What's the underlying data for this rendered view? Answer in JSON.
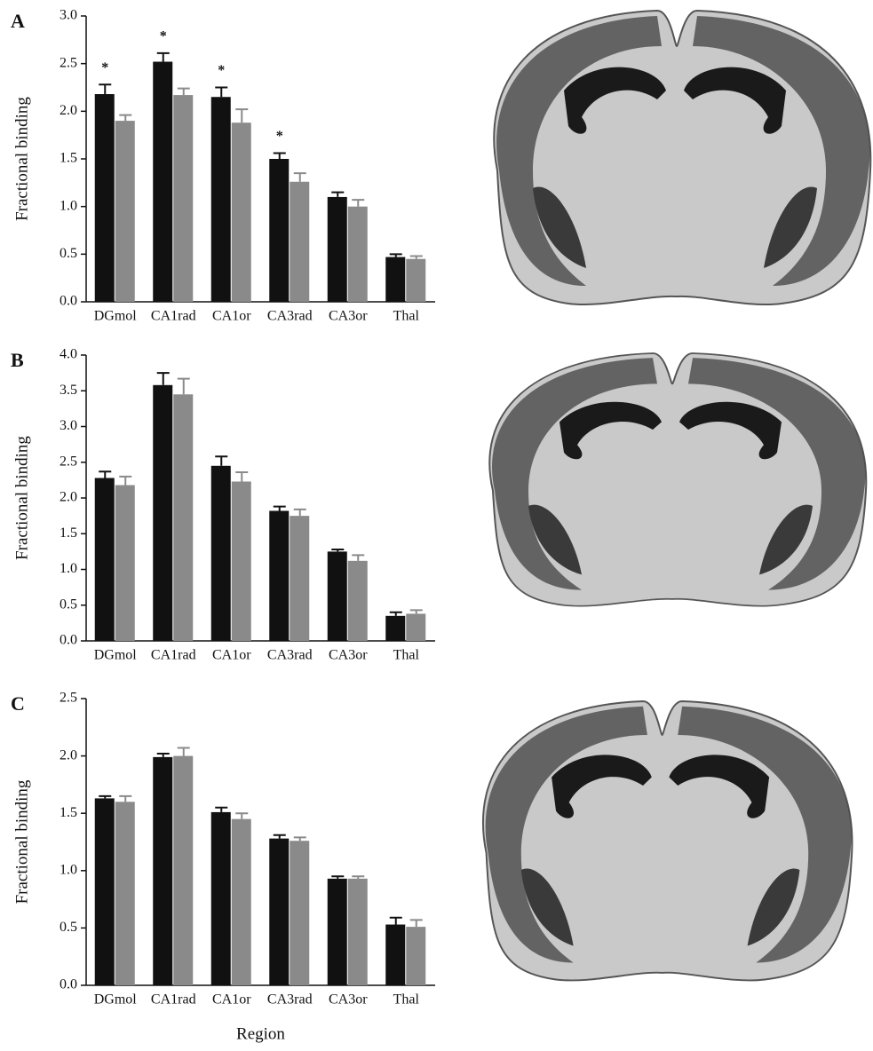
{
  "chart_data": [
    {
      "type": "bar",
      "panel_label": "A",
      "y_label": "Fractional binding",
      "categories": [
        "DGmol",
        "CA1rad",
        "CA1or",
        "CA3rad",
        "CA3or",
        "Thal"
      ],
      "series": [
        {
          "color": "#111111",
          "values": [
            2.18,
            2.52,
            2.15,
            1.5,
            1.1,
            0.47
          ],
          "errors": [
            0.1,
            0.09,
            0.1,
            0.06,
            0.05,
            0.03
          ],
          "annotations": [
            "*",
            "*",
            "*",
            "*",
            null,
            null
          ]
        },
        {
          "color": "#8a8a8a",
          "values": [
            1.9,
            2.17,
            1.88,
            1.26,
            1.0,
            0.45
          ],
          "errors": [
            0.06,
            0.07,
            0.14,
            0.09,
            0.07,
            0.03
          ]
        }
      ],
      "ylim": [
        0,
        3
      ],
      "yticks": [
        {
          "value": 0,
          "label": "0.0"
        },
        0.5,
        {
          "value": 1,
          "label": "1.0"
        },
        1.5,
        {
          "value": 2,
          "label": "2.0"
        },
        2.5,
        {
          "value": 3,
          "label": "3.0"
        }
      ]
    },
    {
      "type": "bar",
      "panel_label": "B",
      "y_label": "Fractional binding",
      "categories": [
        "DGmol",
        "CA1rad",
        "CA1or",
        "CA3rad",
        "CA3or",
        "Thal"
      ],
      "series": [
        {
          "color": "#111111",
          "values": [
            2.28,
            3.58,
            2.45,
            1.82,
            1.25,
            0.35
          ],
          "errors": [
            0.09,
            0.17,
            0.13,
            0.06,
            0.03,
            0.05
          ]
        },
        {
          "color": "#8a8a8a",
          "values": [
            2.18,
            3.45,
            2.23,
            1.75,
            1.12,
            0.38
          ],
          "errors": [
            0.12,
            0.22,
            0.13,
            0.09,
            0.08,
            0.05
          ]
        }
      ],
      "ylim": [
        0,
        4
      ],
      "yticks": [
        {
          "value": 0,
          "label": "0.0"
        },
        0.5,
        {
          "value": 1,
          "label": "1.0"
        },
        1.5,
        {
          "value": 2,
          "label": "2.0"
        },
        2.5,
        {
          "value": 3,
          "label": "3.0"
        },
        3.5,
        {
          "value": 4,
          "label": "4.0"
        }
      ]
    },
    {
      "type": "bar",
      "panel_label": "C",
      "y_label": "Fractional binding",
      "x_label": "Region",
      "categories": [
        "DGmol",
        "CA1rad",
        "CA1or",
        "CA3rad",
        "CA3or",
        "Thal"
      ],
      "series": [
        {
          "color": "#111111",
          "values": [
            1.63,
            1.99,
            1.51,
            1.28,
            0.93,
            0.53
          ],
          "errors": [
            0.02,
            0.03,
            0.04,
            0.03,
            0.02,
            0.06
          ]
        },
        {
          "color": "#8a8a8a",
          "values": [
            1.6,
            2.0,
            1.45,
            1.26,
            0.93,
            0.51
          ],
          "errors": [
            0.05,
            0.07,
            0.05,
            0.03,
            0.02,
            0.06
          ]
        }
      ],
      "ylim": [
        0,
        2.5
      ],
      "yticks": [
        {
          "value": 0,
          "label": "0.0"
        },
        0.5,
        {
          "value": 1,
          "label": "1.0"
        },
        1.5,
        {
          "value": 2,
          "label": "2.0"
        },
        2.5
      ]
    }
  ]
}
